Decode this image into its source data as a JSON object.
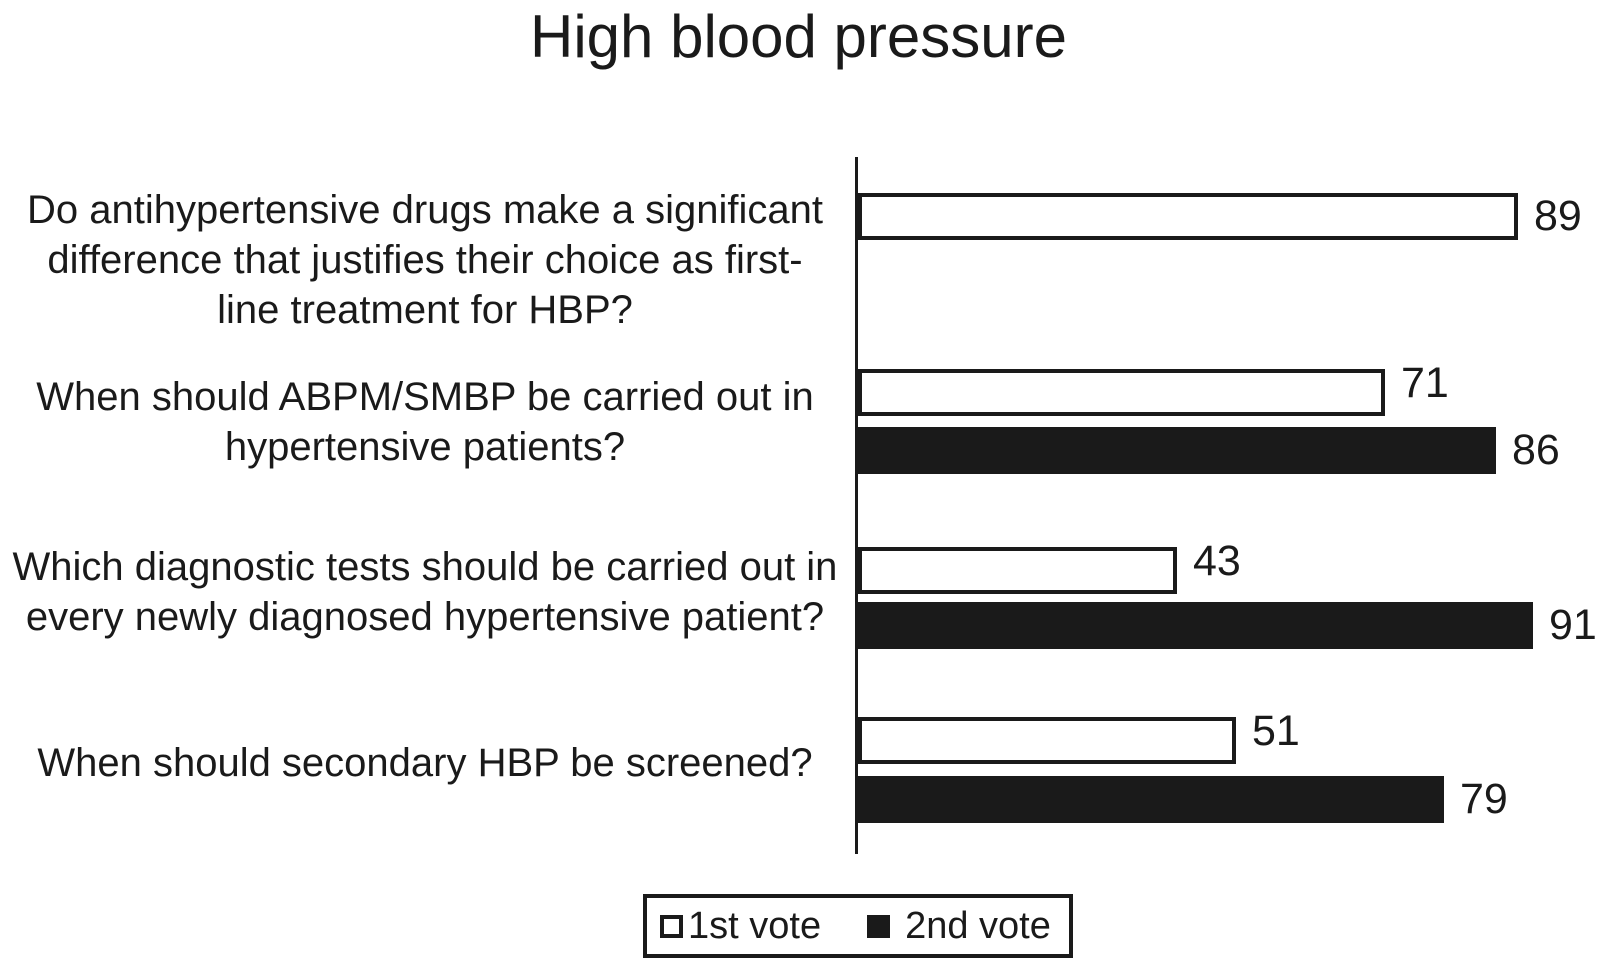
{
  "title": "High blood pressure",
  "chart_data": {
    "type": "bar",
    "orientation": "horizontal",
    "title": "High blood pressure",
    "categories": [
      "Do antihypertensive drugs make a significant difference that justifies their choice as first-line treatment for HBP?",
      "When should ABPM/SMBP be carried out in hypertensive patients?",
      "Which diagnostic tests should be carried out in every newly diagnosed hypertensive patient?",
      "When should secondary HBP be screened?"
    ],
    "category_lines": [
      [
        "Do antihypertensive drugs make a significant",
        "difference that justifies their choice as first-",
        "line treatment for HBP?"
      ],
      [
        "When should ABPM/SMBP be carried out in",
        "hypertensive patients?"
      ],
      [
        "Which diagnostic tests should be carried out in",
        "every newly diagnosed hypertensive patient?"
      ],
      [
        "When should secondary HBP be screened?"
      ]
    ],
    "series": [
      {
        "name": "1st vote",
        "style": "outline-white",
        "values": [
          89,
          71,
          43,
          51
        ]
      },
      {
        "name": "2nd vote",
        "style": "solid-black",
        "values": [
          null,
          86,
          91,
          79
        ]
      }
    ],
    "xlim": [
      0,
      100
    ],
    "grid": false,
    "value_labels_shown": true,
    "legend_position": "bottom"
  },
  "legend": {
    "items": [
      {
        "label": "1st vote",
        "swatch": "outline"
      },
      {
        "label": "2nd vote",
        "swatch": "solid"
      }
    ]
  },
  "colors": {
    "ink": "#1a1a1a",
    "background": "#ffffff",
    "first_vote_fill": "#ffffff",
    "second_vote_fill": "#1a1a1a"
  }
}
